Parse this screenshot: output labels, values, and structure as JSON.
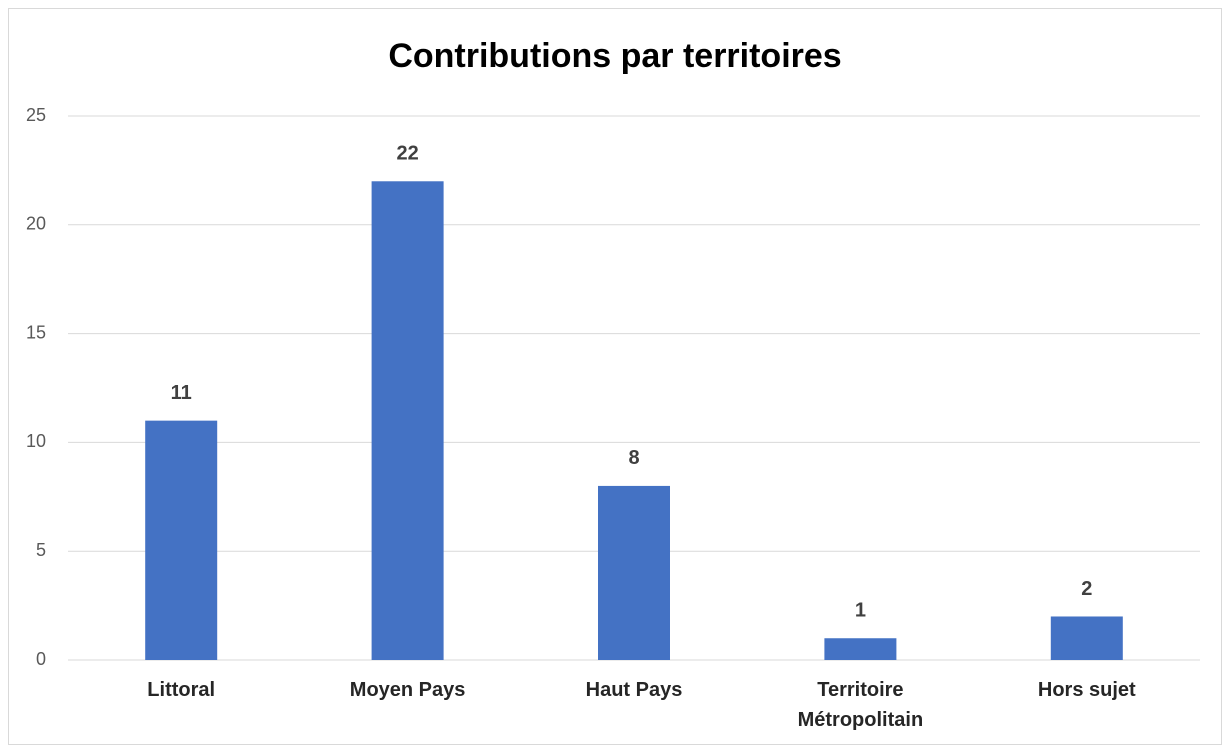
{
  "chart_data": {
    "type": "bar",
    "title": "Contributions par territoires",
    "categories": [
      "Littoral",
      "Moyen Pays",
      "Haut Pays",
      "Territoire Métropolitain",
      "Hors sujet"
    ],
    "values": [
      11,
      22,
      8,
      1,
      2
    ],
    "color": "#4472c4",
    "ylim": [
      0,
      25
    ],
    "yticks": [
      0,
      5,
      10,
      15,
      20,
      25
    ],
    "grid": true
  }
}
